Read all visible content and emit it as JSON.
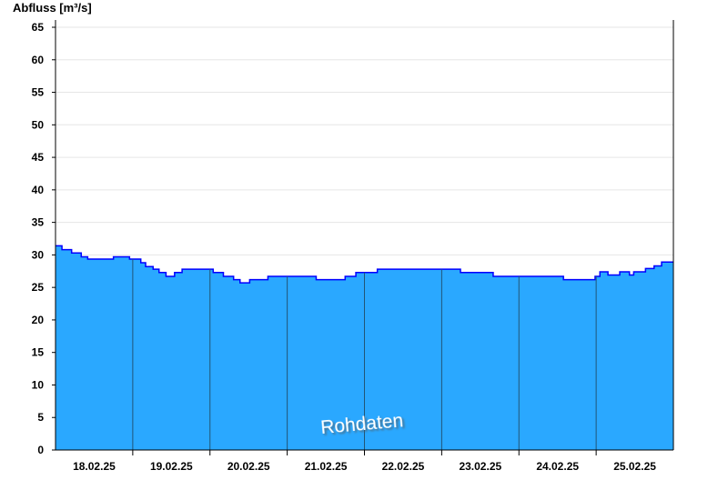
{
  "chart_data": {
    "type": "area",
    "title": "",
    "ylabel": "Abfluss [m³/s]",
    "xlabel": "",
    "ylim": [
      0,
      65
    ],
    "yticks": [
      0,
      5,
      10,
      15,
      20,
      25,
      30,
      35,
      40,
      45,
      50,
      55,
      60,
      65
    ],
    "xlim": [
      "18.02.25 00:00",
      "26.02.25 00:00"
    ],
    "xtick_labels": [
      "18.02.25",
      "19.02.25",
      "20.02.25",
      "21.02.25",
      "22.02.25",
      "23.02.25",
      "24.02.25",
      "25.02.25"
    ],
    "grid": "horizontal",
    "watermark": "Rohdaten",
    "step": true,
    "colors": {
      "fill": "#2aa8ff",
      "line": "#0000ff",
      "grid": "#e6e6e6",
      "day_line": "#225577"
    },
    "series": [
      {
        "points": [
          [
            "18.02.25 00:00",
            31.4
          ],
          [
            "18.02.25 02:00",
            30.8
          ],
          [
            "18.02.25 05:00",
            30.3
          ],
          [
            "18.02.25 08:00",
            29.7
          ],
          [
            "18.02.25 10:00",
            29.35
          ],
          [
            "18.02.25 18:00",
            29.7
          ],
          [
            "18.02.25 23:00",
            29.35
          ],
          [
            "19.02.25 02:30",
            28.8
          ],
          [
            "19.02.25 04:00",
            28.2
          ],
          [
            "19.02.25 06:20",
            27.8
          ],
          [
            "19.02.25 08:10",
            27.3
          ],
          [
            "19.02.25 10:20",
            26.7
          ],
          [
            "19.02.25 13:00",
            27.3
          ],
          [
            "19.02.25 15:20",
            27.8
          ],
          [
            "20.02.25 01:00",
            27.3
          ],
          [
            "20.02.25 04:10",
            26.7
          ],
          [
            "20.02.25 07:20",
            26.2
          ],
          [
            "20.02.25 09:20",
            25.7
          ],
          [
            "20.02.25 12:20",
            26.2
          ],
          [
            "20.02.25 18:00",
            26.7
          ],
          [
            "21.02.25 09:00",
            26.2
          ],
          [
            "21.02.25 18:00",
            26.7
          ],
          [
            "21.02.25 21:20",
            27.3
          ],
          [
            "22.02.25 04:00",
            27.8
          ],
          [
            "23.02.25 05:50",
            27.3
          ],
          [
            "23.02.25 16:00",
            26.7
          ],
          [
            "24.02.25 13:50",
            26.2
          ],
          [
            "24.02.25 23:40",
            26.7
          ],
          [
            "25.02.25 01:10",
            27.4
          ],
          [
            "25.02.25 03:40",
            26.9
          ],
          [
            "25.02.25 07:20",
            27.4
          ],
          [
            "25.02.25 10:20",
            26.9
          ],
          [
            "25.02.25 11:40",
            27.4
          ],
          [
            "25.02.25 15:20",
            27.9
          ],
          [
            "25.02.25 18:00",
            28.3
          ],
          [
            "25.02.25 20:20",
            28.9
          ],
          [
            "26.02.25 00:00",
            28.9
          ]
        ]
      }
    ]
  }
}
